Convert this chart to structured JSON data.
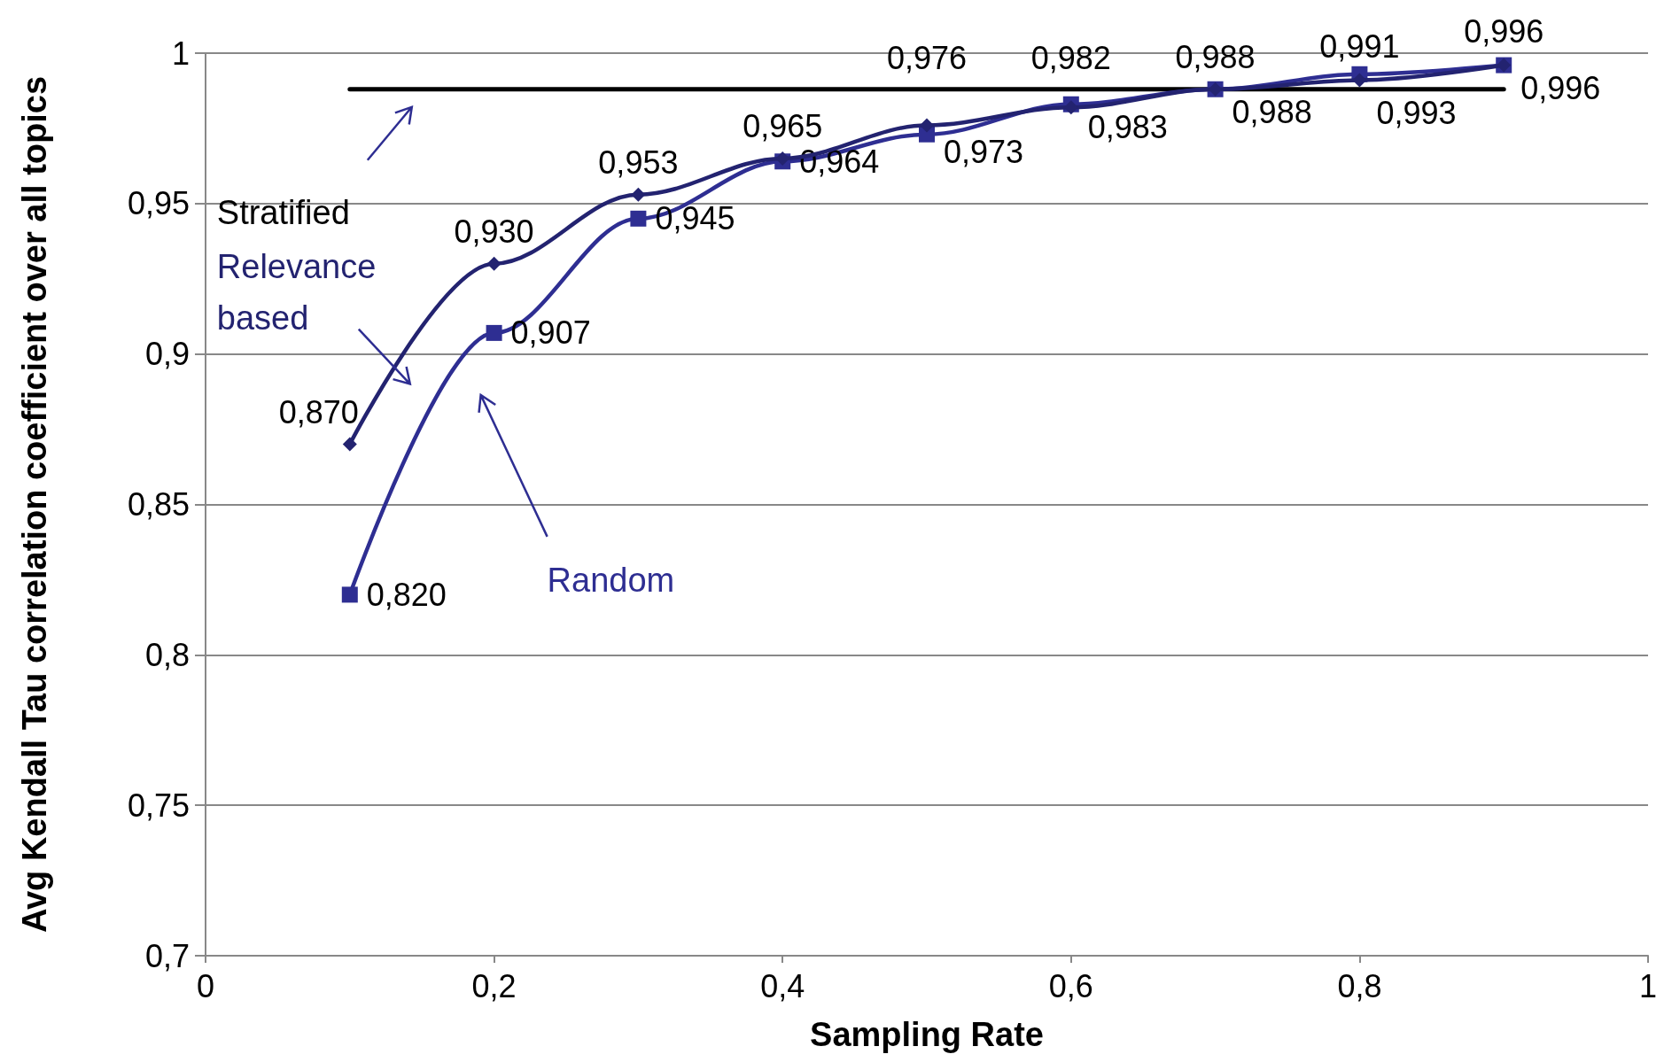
{
  "chart_data": {
    "type": "line",
    "xlabel": "Sampling Rate",
    "ylabel": "Avg Kendall Tau correlation coefficient over all topics",
    "x": [
      0.1,
      0.2,
      0.3,
      0.4,
      0.5,
      0.6,
      0.7,
      0.8,
      0.9
    ],
    "series": [
      {
        "name": "Relevance based",
        "color": "#232370",
        "marker": "diamond",
        "values": [
          0.87,
          0.93,
          0.953,
          0.965,
          0.976,
          0.982,
          0.988,
          0.991,
          0.996
        ],
        "value_labels": [
          "0,870",
          "0,930",
          "0,953",
          "0,965",
          "0,976",
          "0,982",
          "0,988",
          "0,991",
          "0,996"
        ]
      },
      {
        "name": "Random",
        "color": "#2e2e92",
        "marker": "square",
        "values": [
          0.82,
          0.907,
          0.945,
          0.964,
          0.973,
          0.983,
          0.988,
          0.993,
          0.996
        ],
        "value_labels": [
          "0,820",
          "0,907",
          "0,945",
          "0,964",
          "0,973",
          "0,983",
          "0,988",
          "0,993",
          "0,996"
        ]
      },
      {
        "name": "Stratified",
        "color": "#000000",
        "marker": "none",
        "x": [
          0.1,
          0.9
        ],
        "values": [
          0.988,
          0.988
        ]
      }
    ],
    "xlim": [
      0,
      1
    ],
    "xticks": [
      0,
      {
        "value": 0.2,
        "label": "0,2"
      },
      {
        "value": 0.4,
        "label": "0,4"
      },
      {
        "value": 0.6,
        "label": "0,6"
      },
      {
        "value": 0.8,
        "label": "0,8"
      },
      1
    ],
    "ylim": [
      0.7,
      1
    ],
    "yticks": [
      {
        "value": 0.7,
        "label": "0,7"
      },
      {
        "value": 0.75,
        "label": "0,75"
      },
      {
        "value": 0.8,
        "label": "0,8"
      },
      {
        "value": 0.85,
        "label": "0,85"
      },
      {
        "value": 0.9,
        "label": "0,9"
      },
      {
        "value": 0.95,
        "label": "0,95"
      },
      1
    ],
    "grid": "y",
    "legend": false
  }
}
